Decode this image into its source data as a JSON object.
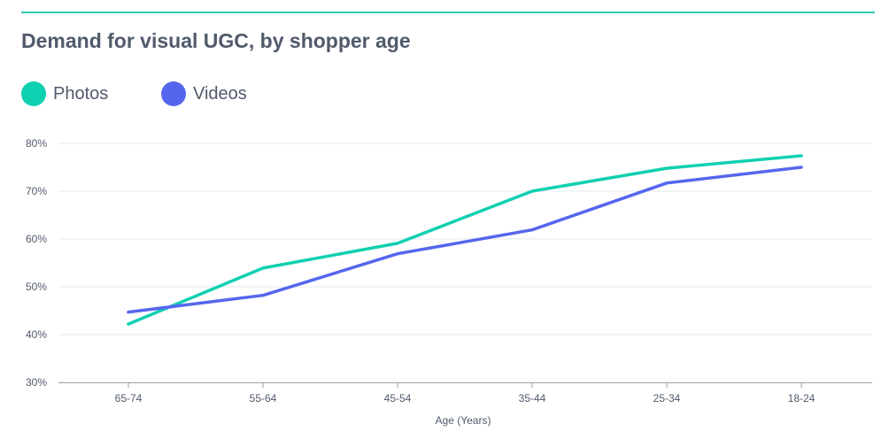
{
  "chart_data": {
    "type": "line",
    "title": "Demand for visual UGC, by shopper age",
    "xlabel": "Age (Years)",
    "ylabel": "",
    "categories": [
      "65-74",
      "55-64",
      "45-54",
      "35-44",
      "25-34",
      "18-24"
    ],
    "yticks": [
      "30%",
      "40%",
      "50%",
      "60%",
      "70%",
      "80%"
    ],
    "ylim": [
      30,
      80
    ],
    "grid": true,
    "legend_position": "top-left",
    "series": [
      {
        "name": "Photos",
        "color": "#0fd0b0",
        "values": [
          42.2,
          53.9,
          59.1,
          70.0,
          74.8,
          77.4
        ]
      },
      {
        "name": "Videos",
        "color": "#5566ee",
        "values": [
          44.7,
          48.2,
          56.9,
          61.9,
          71.7,
          75.0
        ]
      }
    ]
  },
  "colors": {
    "accent_rule": "#2ec9b4",
    "text": "#505a6b",
    "grid": "#e6e8eb"
  }
}
